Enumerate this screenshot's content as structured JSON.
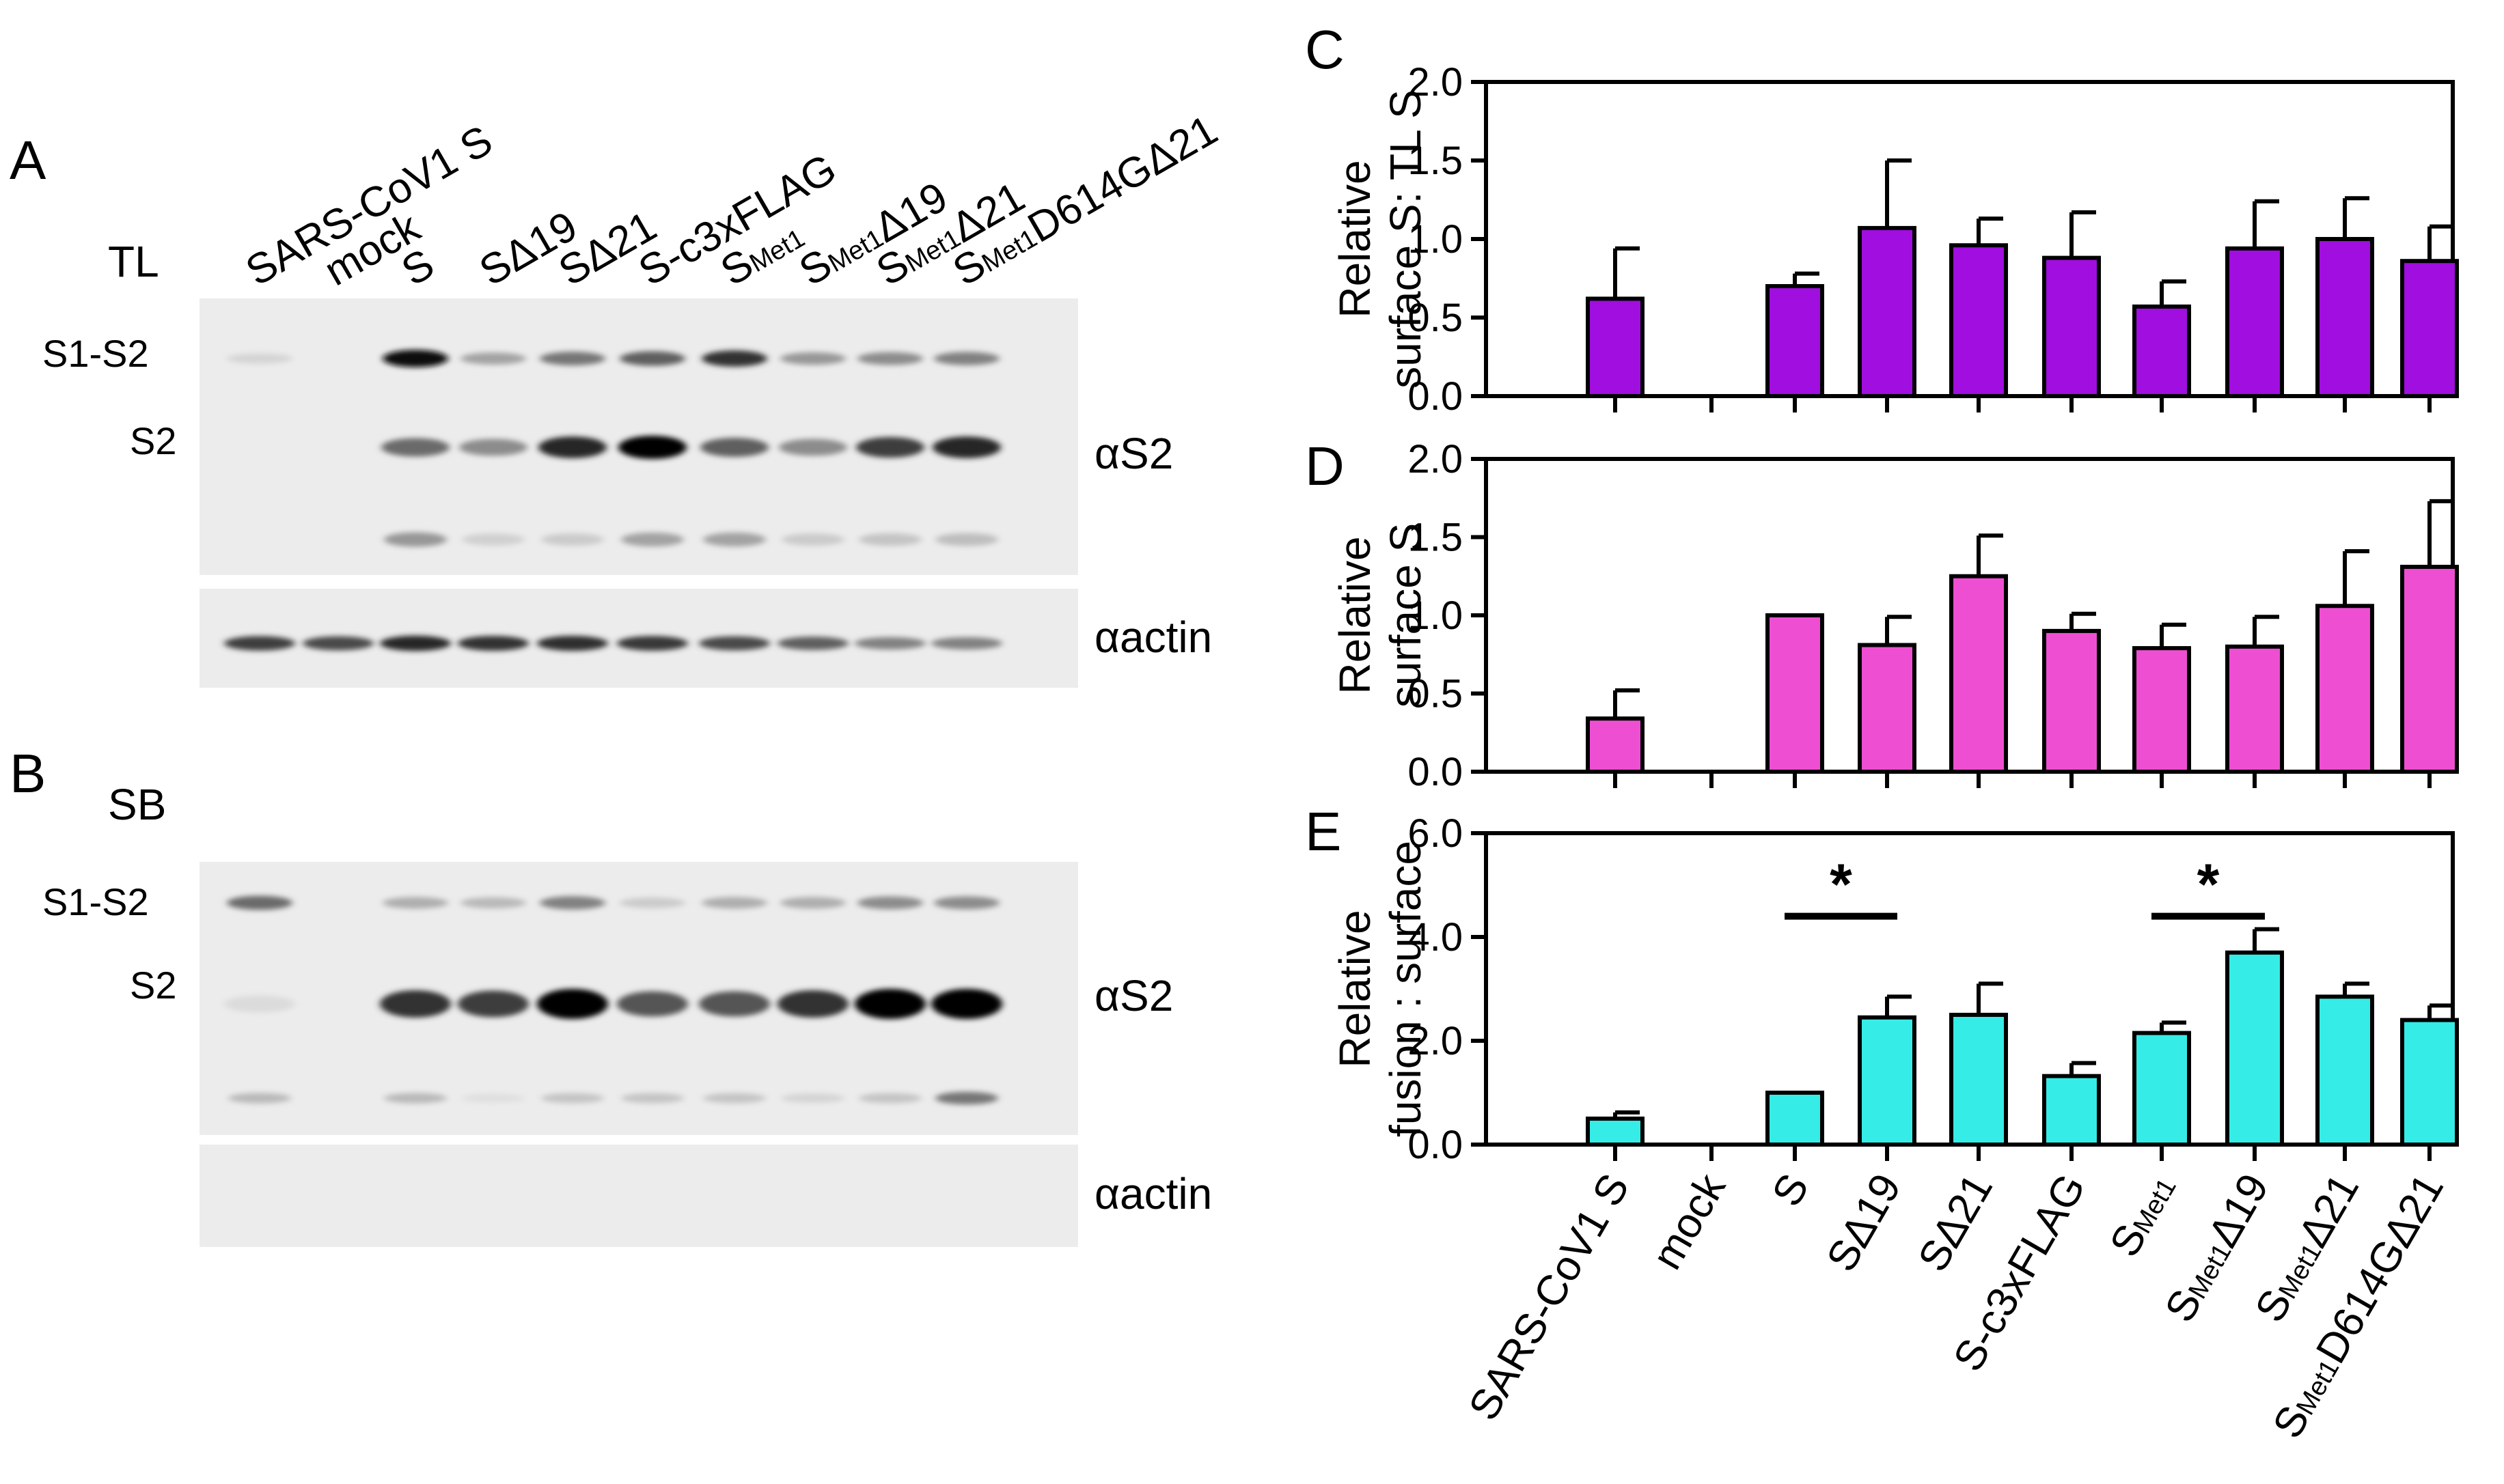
{
  "panels": {
    "A": "A",
    "B": "B",
    "C": "C",
    "D": "D",
    "E": "E"
  },
  "blots": {
    "tl_label": "TL",
    "sb_label": "SB",
    "lanes": [
      {
        "main": "SARS-CoV1 S",
        "sub": "",
        "tail": ""
      },
      {
        "main": "mock",
        "sub": "",
        "tail": ""
      },
      {
        "main": "S",
        "sub": "",
        "tail": ""
      },
      {
        "main": "SΔ19",
        "sub": "",
        "tail": ""
      },
      {
        "main": "SΔ21",
        "sub": "",
        "tail": ""
      },
      {
        "main": "S-c3xFLAG",
        "sub": "",
        "tail": ""
      },
      {
        "main": "S",
        "sub": "Met1",
        "tail": ""
      },
      {
        "main": "S",
        "sub": "Met1",
        "tail": "Δ19"
      },
      {
        "main": "S",
        "sub": "Met1",
        "tail": "Δ21"
      },
      {
        "main": "S",
        "sub": "Met1",
        "tail": "D614GΔ21"
      }
    ],
    "band_labels": {
      "s1s2": "S1-S2",
      "s2": "S2"
    },
    "antibodies": {
      "s2": "αS2",
      "actin": "αactin"
    },
    "tl_intensity": {
      "s1s2": [
        0.08,
        0,
        0.95,
        0.3,
        0.5,
        0.6,
        0.8,
        0.35,
        0.4,
        0.45
      ],
      "s2": [
        0,
        0,
        0.55,
        0.4,
        0.85,
        1.0,
        0.6,
        0.4,
        0.75,
        0.85
      ],
      "lower": [
        0,
        0,
        0.35,
        0.1,
        0.12,
        0.3,
        0.3,
        0.12,
        0.15,
        0.18
      ],
      "actin": [
        0.75,
        0.7,
        0.85,
        0.8,
        0.82,
        0.78,
        0.7,
        0.6,
        0.45,
        0.45
      ]
    },
    "sb_intensity": {
      "s1s2": [
        0.55,
        0,
        0.25,
        0.2,
        0.45,
        0.12,
        0.25,
        0.25,
        0.4,
        0.4
      ],
      "s2": [
        0.05,
        0,
        0.8,
        0.75,
        1.0,
        0.65,
        0.65,
        0.8,
        1.0,
        1.0
      ],
      "lower": [
        0.2,
        0,
        0.2,
        0.03,
        0.15,
        0.15,
        0.15,
        0.08,
        0.15,
        0.5
      ]
    }
  },
  "colors": {
    "C": "#a00ee0",
    "D": "#ee4fd2",
    "E": "#36ece6"
  },
  "chart_data": [
    {
      "panel": "C",
      "type": "bar",
      "title": "",
      "xlabel": "",
      "ylabel": [
        "Relative",
        "surface S: TL S"
      ],
      "ylim": [
        0,
        2.0
      ],
      "yticks": [
        "0.0",
        "0.5",
        "1.0",
        "1.5",
        "2.0"
      ],
      "categories": [
        "SARS-CoV1 S",
        "mock",
        "S",
        "SΔ19",
        "SΔ21",
        "S-c3xFLAG",
        "SMet1",
        "SMet1Δ19",
        "SMet1Δ21",
        "SMet1D614GΔ21"
      ],
      "values": [
        0.62,
        null,
        0.7,
        1.07,
        0.96,
        0.88,
        0.57,
        0.94,
        1.0,
        0.86
      ],
      "errors": [
        0.32,
        null,
        0.08,
        0.43,
        0.17,
        0.29,
        0.16,
        0.3,
        0.26,
        0.22
      ]
    },
    {
      "panel": "D",
      "type": "bar",
      "title": "",
      "xlabel": "",
      "ylabel": [
        "Relative",
        "surface S"
      ],
      "ylim": [
        0,
        2.0
      ],
      "yticks": [
        "0.0",
        "0.5",
        "1.0",
        "1.5",
        "2.0"
      ],
      "categories": [
        "SARS-CoV1 S",
        "mock",
        "S",
        "SΔ19",
        "SΔ21",
        "S-c3xFLAG",
        "SMet1",
        "SMet1Δ19",
        "SMet1Δ21",
        "SMet1D614GΔ21"
      ],
      "values": [
        0.34,
        null,
        1.0,
        0.81,
        1.25,
        0.9,
        0.79,
        0.8,
        1.06,
        1.31
      ],
      "errors": [
        0.18,
        null,
        0.0,
        0.18,
        0.26,
        0.11,
        0.15,
        0.19,
        0.35,
        0.42
      ]
    },
    {
      "panel": "E",
      "type": "bar",
      "title": "",
      "xlabel": "",
      "ylabel": [
        "Relative",
        "fusion : surface"
      ],
      "ylim": [
        0,
        6.0
      ],
      "yticks": [
        "0.0",
        "2.0",
        "4.0",
        "6.0"
      ],
      "categories": [
        "SARS-CoV1 S",
        "mock",
        "S",
        "SΔ19",
        "SΔ21",
        "S-c3xFLAG",
        "SMet1",
        "SMet1Δ19",
        "SMet1Δ21",
        "SMet1D614GΔ21"
      ],
      "values": [
        0.5,
        null,
        1.0,
        2.45,
        2.5,
        1.32,
        2.15,
        3.7,
        2.85,
        2.4
      ],
      "errors": [
        0.12,
        null,
        0.0,
        0.4,
        0.6,
        0.25,
        0.2,
        0.45,
        0.25,
        0.28
      ],
      "significance": [
        {
          "from": 2,
          "to": 3,
          "label": "*"
        },
        {
          "from": 6,
          "to": 7,
          "label": "*"
        }
      ]
    }
  ]
}
